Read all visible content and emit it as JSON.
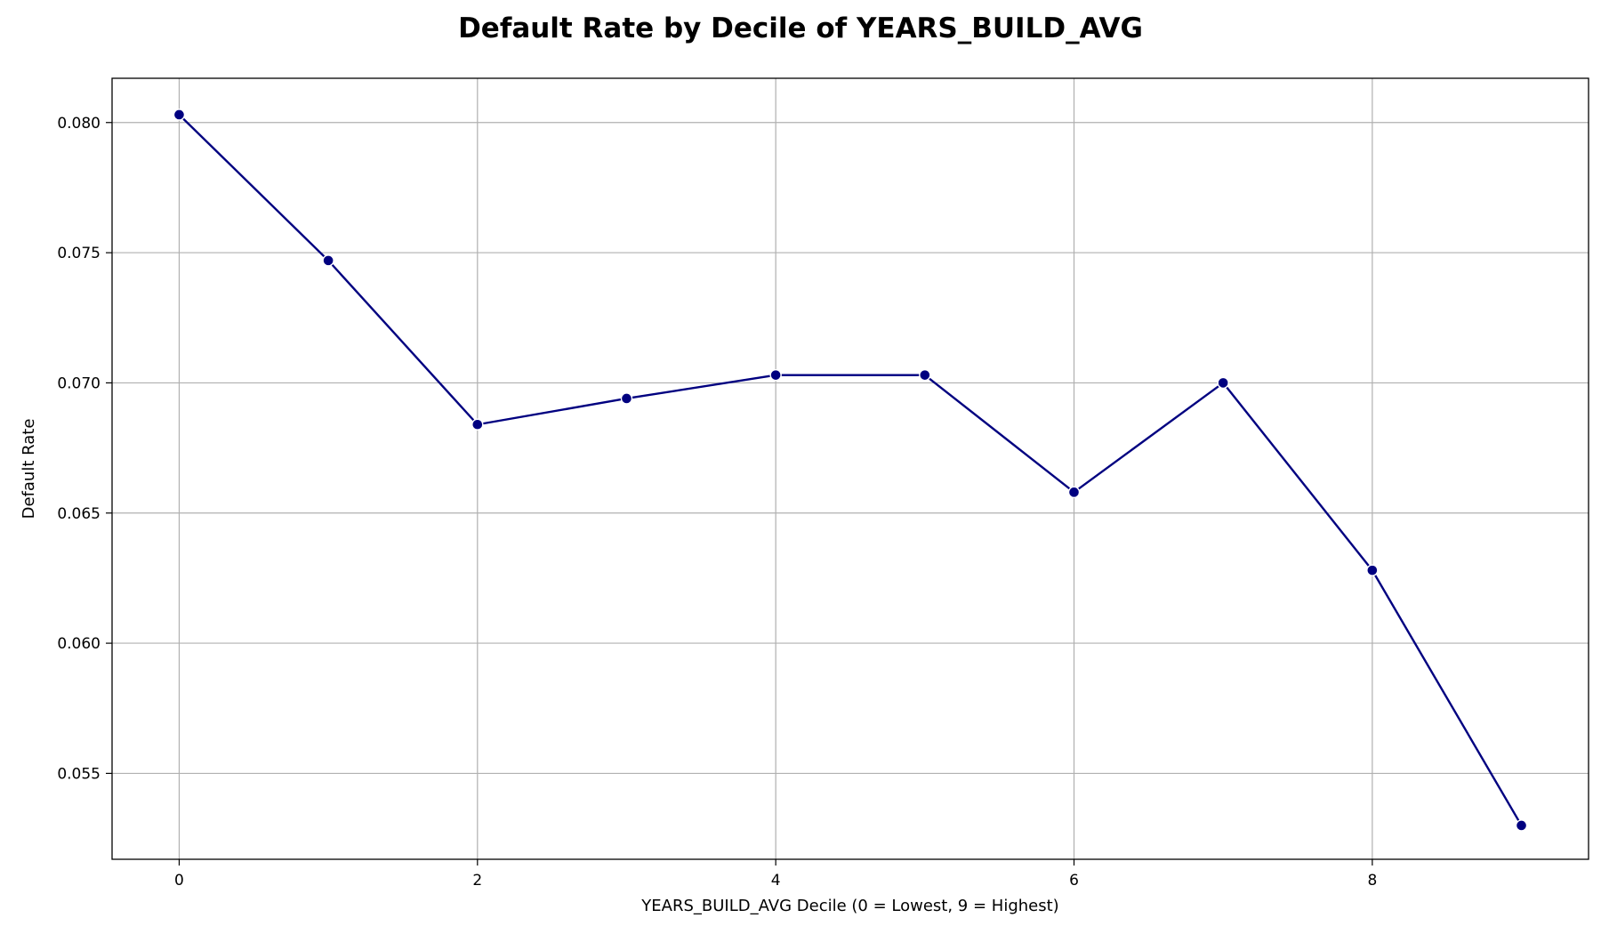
{
  "chart_data": {
    "type": "line",
    "title": "Default Rate by Decile of YEARS_BUILD_AVG",
    "xlabel": "YEARS_BUILD_AVG Decile (0 = Lowest, 9 = Highest)",
    "ylabel": "Default Rate",
    "xlim": [
      -0.45,
      9.45
    ],
    "ylim": [
      0.0517,
      0.0817
    ],
    "x_ticks": [
      0,
      2,
      4,
      6,
      8
    ],
    "x_tick_labels": [
      "0",
      "2",
      "4",
      "6",
      "8"
    ],
    "y_ticks": [
      0.055,
      0.06,
      0.065,
      0.07,
      0.075,
      0.08
    ],
    "y_tick_labels": [
      "0.055",
      "0.060",
      "0.065",
      "0.070",
      "0.075",
      "0.080"
    ],
    "grid": true,
    "legend": "none",
    "series": [
      {
        "color": "#000080",
        "x": [
          0,
          1,
          2,
          3,
          4,
          5,
          6,
          7,
          8,
          9
        ],
        "y": [
          0.0803,
          0.0747,
          0.0684,
          0.0694,
          0.0703,
          0.0703,
          0.0658,
          0.07,
          0.0628,
          0.053
        ]
      }
    ]
  }
}
